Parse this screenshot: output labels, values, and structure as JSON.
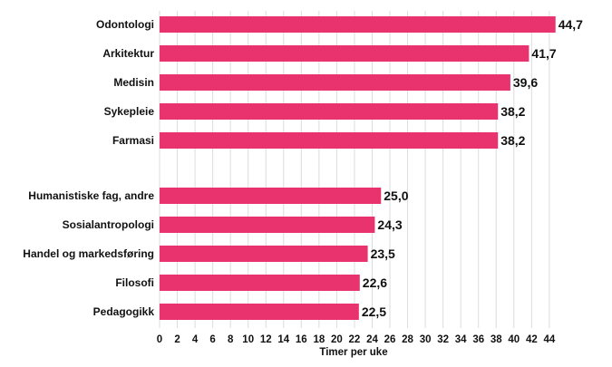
{
  "chart_data": {
    "type": "bar",
    "orientation": "horizontal",
    "title": "",
    "xlabel": "Timer per uke",
    "ylabel": "",
    "xlim": [
      0,
      44
    ],
    "xticks": [
      0,
      2,
      4,
      6,
      8,
      10,
      12,
      14,
      16,
      18,
      20,
      22,
      24,
      26,
      28,
      30,
      32,
      34,
      36,
      38,
      40,
      42,
      44
    ],
    "grid": true,
    "bar_color": "#e8336e",
    "groups": [
      {
        "categories": [
          "Odontologi",
          "Arkitektur",
          "Medisin",
          "Sykepleie",
          "Farmasi"
        ],
        "values": [
          44.7,
          41.7,
          39.6,
          38.2,
          38.2
        ],
        "value_labels": [
          "44,7",
          "41,7",
          "39,6",
          "38,2",
          "38,2"
        ]
      },
      {
        "categories": [
          "Humanistiske fag, andre",
          "Sosialantropologi",
          "Handel og markedsføring",
          "Filosofi",
          "Pedagogikk"
        ],
        "values": [
          25.0,
          24.3,
          23.5,
          22.6,
          22.5
        ],
        "value_labels": [
          "25,0",
          "24,3",
          "23,5",
          "22,6",
          "22,5"
        ]
      }
    ]
  }
}
